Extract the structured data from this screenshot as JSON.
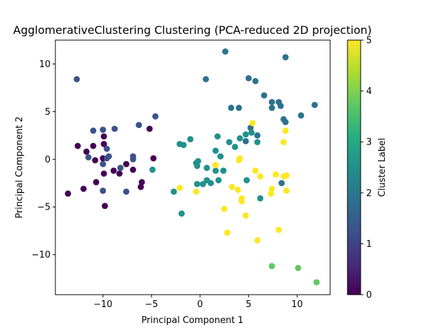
{
  "chart_data": {
    "type": "scatter",
    "title": "AgglomerativeClustering Clustering (PCA-reduced 2D projection)",
    "xlabel": "Principal Component 1",
    "ylabel": "Principal Component 2",
    "xlim": [
      -14.9,
      13.4
    ],
    "ylim": [
      -14.2,
      12.5
    ],
    "xticks": [
      -10,
      -5,
      0,
      5,
      10
    ],
    "yticks": [
      -10,
      -5,
      0,
      5,
      10
    ],
    "grid": false,
    "colorbar": {
      "label": "Cluster Label",
      "colormap": "viridis",
      "range": [
        0,
        5
      ],
      "ticks": [
        0,
        1,
        2,
        3,
        4,
        5
      ]
    },
    "points": [
      {
        "x": -13.6,
        "y": -3.6,
        "c": 0
      },
      {
        "x": -12.6,
        "y": 1.4,
        "c": 0
      },
      {
        "x": -12.0,
        "y": -3.1,
        "c": 0
      },
      {
        "x": -11.7,
        "y": 0.8,
        "c": 0
      },
      {
        "x": -11.0,
        "y": 1.4,
        "c": 0
      },
      {
        "x": -10.8,
        "y": -0.1,
        "c": 0
      },
      {
        "x": -10.7,
        "y": -2.4,
        "c": 0
      },
      {
        "x": -9.9,
        "y": 2.4,
        "c": 0
      },
      {
        "x": -9.9,
        "y": 1.6,
        "c": 0
      },
      {
        "x": -10.0,
        "y": 0.1,
        "c": 0
      },
      {
        "x": -9.9,
        "y": -1.5,
        "c": 0
      },
      {
        "x": -9.8,
        "y": -4.9,
        "c": 0
      },
      {
        "x": -8.9,
        "y": -1.2,
        "c": 0
      },
      {
        "x": -8.3,
        "y": -1.5,
        "c": 0
      },
      {
        "x": -7.6,
        "y": -0.5,
        "c": 0
      },
      {
        "x": -6.9,
        "y": -1.1,
        "c": 0
      },
      {
        "x": -6.0,
        "y": -2.4,
        "c": 0
      },
      {
        "x": -6.1,
        "y": -2.9,
        "c": 0
      },
      {
        "x": -5.2,
        "y": 3.2,
        "c": 0
      },
      {
        "x": -4.8,
        "y": 0.1,
        "c": 0
      },
      {
        "x": -12.7,
        "y": 8.4,
        "c": 1
      },
      {
        "x": -11.0,
        "y": 3.0,
        "c": 1
      },
      {
        "x": -10.0,
        "y": 3.1,
        "c": 1
      },
      {
        "x": -8.8,
        "y": 3.2,
        "c": 1
      },
      {
        "x": -9.6,
        "y": 1.1,
        "c": 1
      },
      {
        "x": -11.5,
        "y": 0.2,
        "c": 1
      },
      {
        "x": -9.4,
        "y": 0.3,
        "c": 1
      },
      {
        "x": -9.6,
        "y": 0.1,
        "c": 1
      },
      {
        "x": -10.0,
        "y": -0.5,
        "c": 1
      },
      {
        "x": -10.0,
        "y": -3.3,
        "c": 1
      },
      {
        "x": -8.2,
        "y": -0.9,
        "c": 1
      },
      {
        "x": -7.6,
        "y": -3.4,
        "c": 1
      },
      {
        "x": -6.9,
        "y": 0.3,
        "c": 1
      },
      {
        "x": -6.9,
        "y": 0.0,
        "c": 1
      },
      {
        "x": -6.3,
        "y": 3.6,
        "c": 1
      },
      {
        "x": -4.6,
        "y": 4.5,
        "c": 1
      },
      {
        "x": 2.6,
        "y": 11.3,
        "c": 2
      },
      {
        "x": 8.8,
        "y": 10.7,
        "c": 2
      },
      {
        "x": 0.6,
        "y": 8.4,
        "c": 2
      },
      {
        "x": 5.0,
        "y": 8.5,
        "c": 2
      },
      {
        "x": 5.7,
        "y": 8.2,
        "c": 2
      },
      {
        "x": 6.6,
        "y": 6.7,
        "c": 2
      },
      {
        "x": 7.4,
        "y": 6.0,
        "c": 2
      },
      {
        "x": 8.1,
        "y": 6.0,
        "c": 2
      },
      {
        "x": 7.4,
        "y": 5.4,
        "c": 2
      },
      {
        "x": 8.3,
        "y": 5.6,
        "c": 2
      },
      {
        "x": 11.8,
        "y": 5.7,
        "c": 2
      },
      {
        "x": 3.2,
        "y": 5.4,
        "c": 2
      },
      {
        "x": 4.0,
        "y": 5.4,
        "c": 2
      },
      {
        "x": 8.6,
        "y": 4.2,
        "c": 2
      },
      {
        "x": 8.8,
        "y": 3.9,
        "c": 2
      },
      {
        "x": 10.4,
        "y": 4.6,
        "c": 2
      },
      {
        "x": 5.2,
        "y": 3.3,
        "c": 2
      },
      {
        "x": 5.9,
        "y": 2.5,
        "c": 2
      },
      {
        "x": 4.7,
        "y": 1.9,
        "c": 2
      },
      {
        "x": 8.4,
        "y": -2.5,
        "c": 2
      },
      {
        "x": -1.0,
        "y": 2.1,
        "c": 3
      },
      {
        "x": -2.1,
        "y": 1.6,
        "c": 3
      },
      {
        "x": -1.7,
        "y": 1.5,
        "c": 3
      },
      {
        "x": 1.8,
        "y": 2.4,
        "c": 3
      },
      {
        "x": 3.0,
        "y": 1.8,
        "c": 3
      },
      {
        "x": 3.6,
        "y": 1.3,
        "c": 3
      },
      {
        "x": 4.1,
        "y": 2.2,
        "c": 3
      },
      {
        "x": 4.7,
        "y": 2.6,
        "c": 3
      },
      {
        "x": 5.3,
        "y": 2.8,
        "c": 3
      },
      {
        "x": 5.9,
        "y": 1.8,
        "c": 3
      },
      {
        "x": 1.6,
        "y": 0.9,
        "c": 3
      },
      {
        "x": 2.1,
        "y": 0.3,
        "c": 3
      },
      {
        "x": -0.2,
        "y": -0.2,
        "c": 3
      },
      {
        "x": -0.4,
        "y": -0.4,
        "c": 3
      },
      {
        "x": -0.3,
        "y": -0.7,
        "c": 3
      },
      {
        "x": 0.7,
        "y": -0.9,
        "c": 3
      },
      {
        "x": 1.6,
        "y": -1.2,
        "c": 3
      },
      {
        "x": 2.4,
        "y": -1.2,
        "c": 3
      },
      {
        "x": -2.7,
        "y": -3.4,
        "c": 3
      },
      {
        "x": -0.3,
        "y": -2.6,
        "c": 3
      },
      {
        "x": 0.3,
        "y": -2.6,
        "c": 3
      },
      {
        "x": 0.7,
        "y": -2.2,
        "c": 3
      },
      {
        "x": 1.1,
        "y": -2.5,
        "c": 3
      },
      {
        "x": 1.9,
        "y": -2.2,
        "c": 3
      },
      {
        "x": 4.8,
        "y": -2.2,
        "c": 3
      },
      {
        "x": 6.2,
        "y": -4.1,
        "c": 3
      },
      {
        "x": -4.9,
        "y": -1.1,
        "c": 3
      },
      {
        "x": -1.9,
        "y": -5.7,
        "c": 3
      },
      {
        "x": 12.0,
        "y": -12.9,
        "c": 4
      },
      {
        "x": 10.1,
        "y": -11.4,
        "c": 4
      },
      {
        "x": 7.4,
        "y": -11.2,
        "c": 4
      },
      {
        "x": 5.4,
        "y": 3.8,
        "c": 5
      },
      {
        "x": 8.8,
        "y": 3.0,
        "c": 5
      },
      {
        "x": 8.6,
        "y": 1.8,
        "c": 5
      },
      {
        "x": 4.1,
        "y": 0.1,
        "c": 5
      },
      {
        "x": 4.0,
        "y": -0.1,
        "c": 5
      },
      {
        "x": 1.6,
        "y": -0.6,
        "c": 5
      },
      {
        "x": 5.7,
        "y": -1.2,
        "c": 5
      },
      {
        "x": 6.2,
        "y": -1.8,
        "c": 5
      },
      {
        "x": 7.8,
        "y": -1.6,
        "c": 5
      },
      {
        "x": 8.6,
        "y": -1.8,
        "c": 5
      },
      {
        "x": 8.9,
        "y": -1.7,
        "c": 5
      },
      {
        "x": 7.4,
        "y": -3.1,
        "c": 5
      },
      {
        "x": 8.9,
        "y": -3.3,
        "c": 5
      },
      {
        "x": 7.3,
        "y": -3.6,
        "c": 5
      },
      {
        "x": 3.3,
        "y": -2.9,
        "c": 5
      },
      {
        "x": 3.9,
        "y": -3.2,
        "c": 5
      },
      {
        "x": -2.1,
        "y": -3.0,
        "c": 5
      },
      {
        "x": -0.4,
        "y": -3.4,
        "c": 5
      },
      {
        "x": 4.3,
        "y": -4.1,
        "c": 5
      },
      {
        "x": 4.3,
        "y": -4.4,
        "c": 5
      },
      {
        "x": 2.5,
        "y": -5.2,
        "c": 5
      },
      {
        "x": 4.7,
        "y": -5.9,
        "c": 5
      },
      {
        "x": 8.1,
        "y": -7.4,
        "c": 5
      },
      {
        "x": 2.8,
        "y": -7.7,
        "c": 5
      },
      {
        "x": 5.9,
        "y": -8.5,
        "c": 5
      }
    ]
  }
}
